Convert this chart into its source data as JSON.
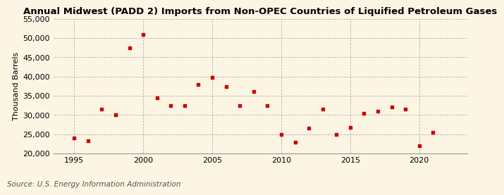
{
  "title": "Annual Midwest (PADD 2) Imports from Non-OPEC Countries of Liquified Petroleum Gases",
  "ylabel": "Thousand Barrels",
  "source": "Source: U.S. Energy Information Administration",
  "background_color": "#fdf5e4",
  "marker_color": "#cc0000",
  "x": [
    1995,
    1996,
    1997,
    1998,
    1999,
    2000,
    2001,
    2002,
    2003,
    2004,
    2005,
    2006,
    2007,
    2008,
    2009,
    2010,
    2011,
    2012,
    2013,
    2014,
    2015,
    2016,
    2017,
    2018,
    2019,
    2020,
    2021
  ],
  "y": [
    24000,
    23200,
    31500,
    30000,
    47500,
    51000,
    34500,
    32500,
    32500,
    38000,
    39800,
    37300,
    32500,
    36000,
    32500,
    25000,
    23000,
    26500,
    31500,
    25000,
    26700,
    30500,
    31000,
    32000,
    31500,
    22000,
    25500
  ],
  "ylim": [
    20000,
    55000
  ],
  "yticks": [
    20000,
    25000,
    30000,
    35000,
    40000,
    45000,
    50000,
    55000
  ],
  "xlim": [
    1993.5,
    2023.5
  ],
  "xticks": [
    1995,
    2000,
    2005,
    2010,
    2015,
    2020
  ],
  "title_fontsize": 9.5,
  "ylabel_fontsize": 8,
  "tick_fontsize": 8,
  "source_fontsize": 7.5
}
